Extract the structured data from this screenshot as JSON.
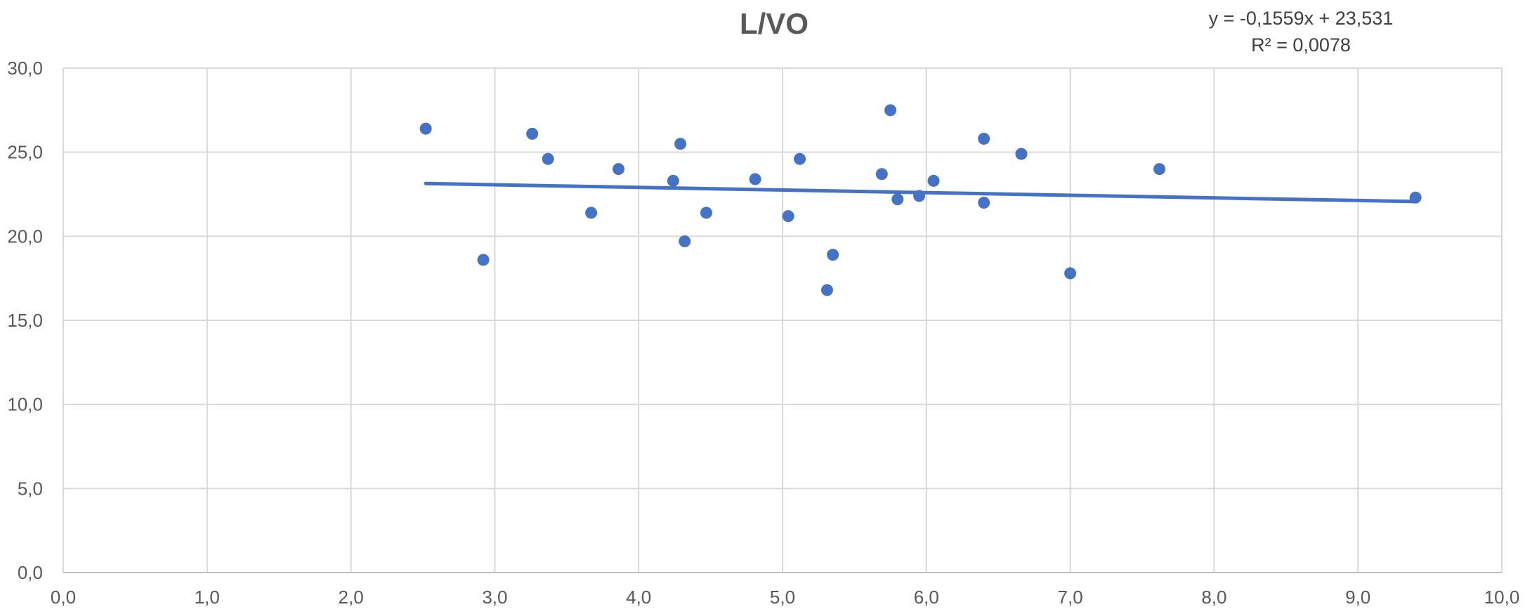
{
  "chart_data": {
    "type": "scatter",
    "title": "L/VO",
    "xlabel": "",
    "ylabel": "",
    "xlim": [
      0,
      10
    ],
    "ylim": [
      0,
      30
    ],
    "x_ticks": [
      "0,0",
      "1,0",
      "2,0",
      "3,0",
      "4,0",
      "5,0",
      "6,0",
      "7,0",
      "8,0",
      "9,0",
      "10,0"
    ],
    "y_ticks": [
      "0,0",
      "5,0",
      "10,0",
      "15,0",
      "20,0",
      "25,0",
      "30,0"
    ],
    "grid": true,
    "legend": "none",
    "marker_color": "#4472C4",
    "trendline_color": "#4472C4",
    "points": [
      {
        "x": 2.52,
        "y": 26.4
      },
      {
        "x": 2.92,
        "y": 18.6
      },
      {
        "x": 3.26,
        "y": 26.1
      },
      {
        "x": 3.37,
        "y": 24.6
      },
      {
        "x": 3.67,
        "y": 21.4
      },
      {
        "x": 3.86,
        "y": 24.0
      },
      {
        "x": 4.24,
        "y": 23.3
      },
      {
        "x": 4.29,
        "y": 25.5
      },
      {
        "x": 4.32,
        "y": 19.7
      },
      {
        "x": 4.47,
        "y": 21.4
      },
      {
        "x": 4.81,
        "y": 23.4
      },
      {
        "x": 5.04,
        "y": 21.2
      },
      {
        "x": 5.12,
        "y": 24.6
      },
      {
        "x": 5.31,
        "y": 16.8
      },
      {
        "x": 5.35,
        "y": 18.9
      },
      {
        "x": 5.69,
        "y": 23.7
      },
      {
        "x": 5.75,
        "y": 27.5
      },
      {
        "x": 5.8,
        "y": 22.2
      },
      {
        "x": 5.95,
        "y": 22.4
      },
      {
        "x": 6.05,
        "y": 23.3
      },
      {
        "x": 6.4,
        "y": 25.8
      },
      {
        "x": 6.4,
        "y": 22.0
      },
      {
        "x": 6.66,
        "y": 24.9
      },
      {
        "x": 7.0,
        "y": 17.8
      },
      {
        "x": 7.62,
        "y": 24.0
      },
      {
        "x": 9.4,
        "y": 22.3
      }
    ],
    "trendline": {
      "slope": -0.1559,
      "intercept": 23.531,
      "x_range": [
        2.52,
        9.4
      ],
      "equation": "y = -0,1559x + 23,531",
      "r_squared": "R² = 0,0078"
    }
  }
}
